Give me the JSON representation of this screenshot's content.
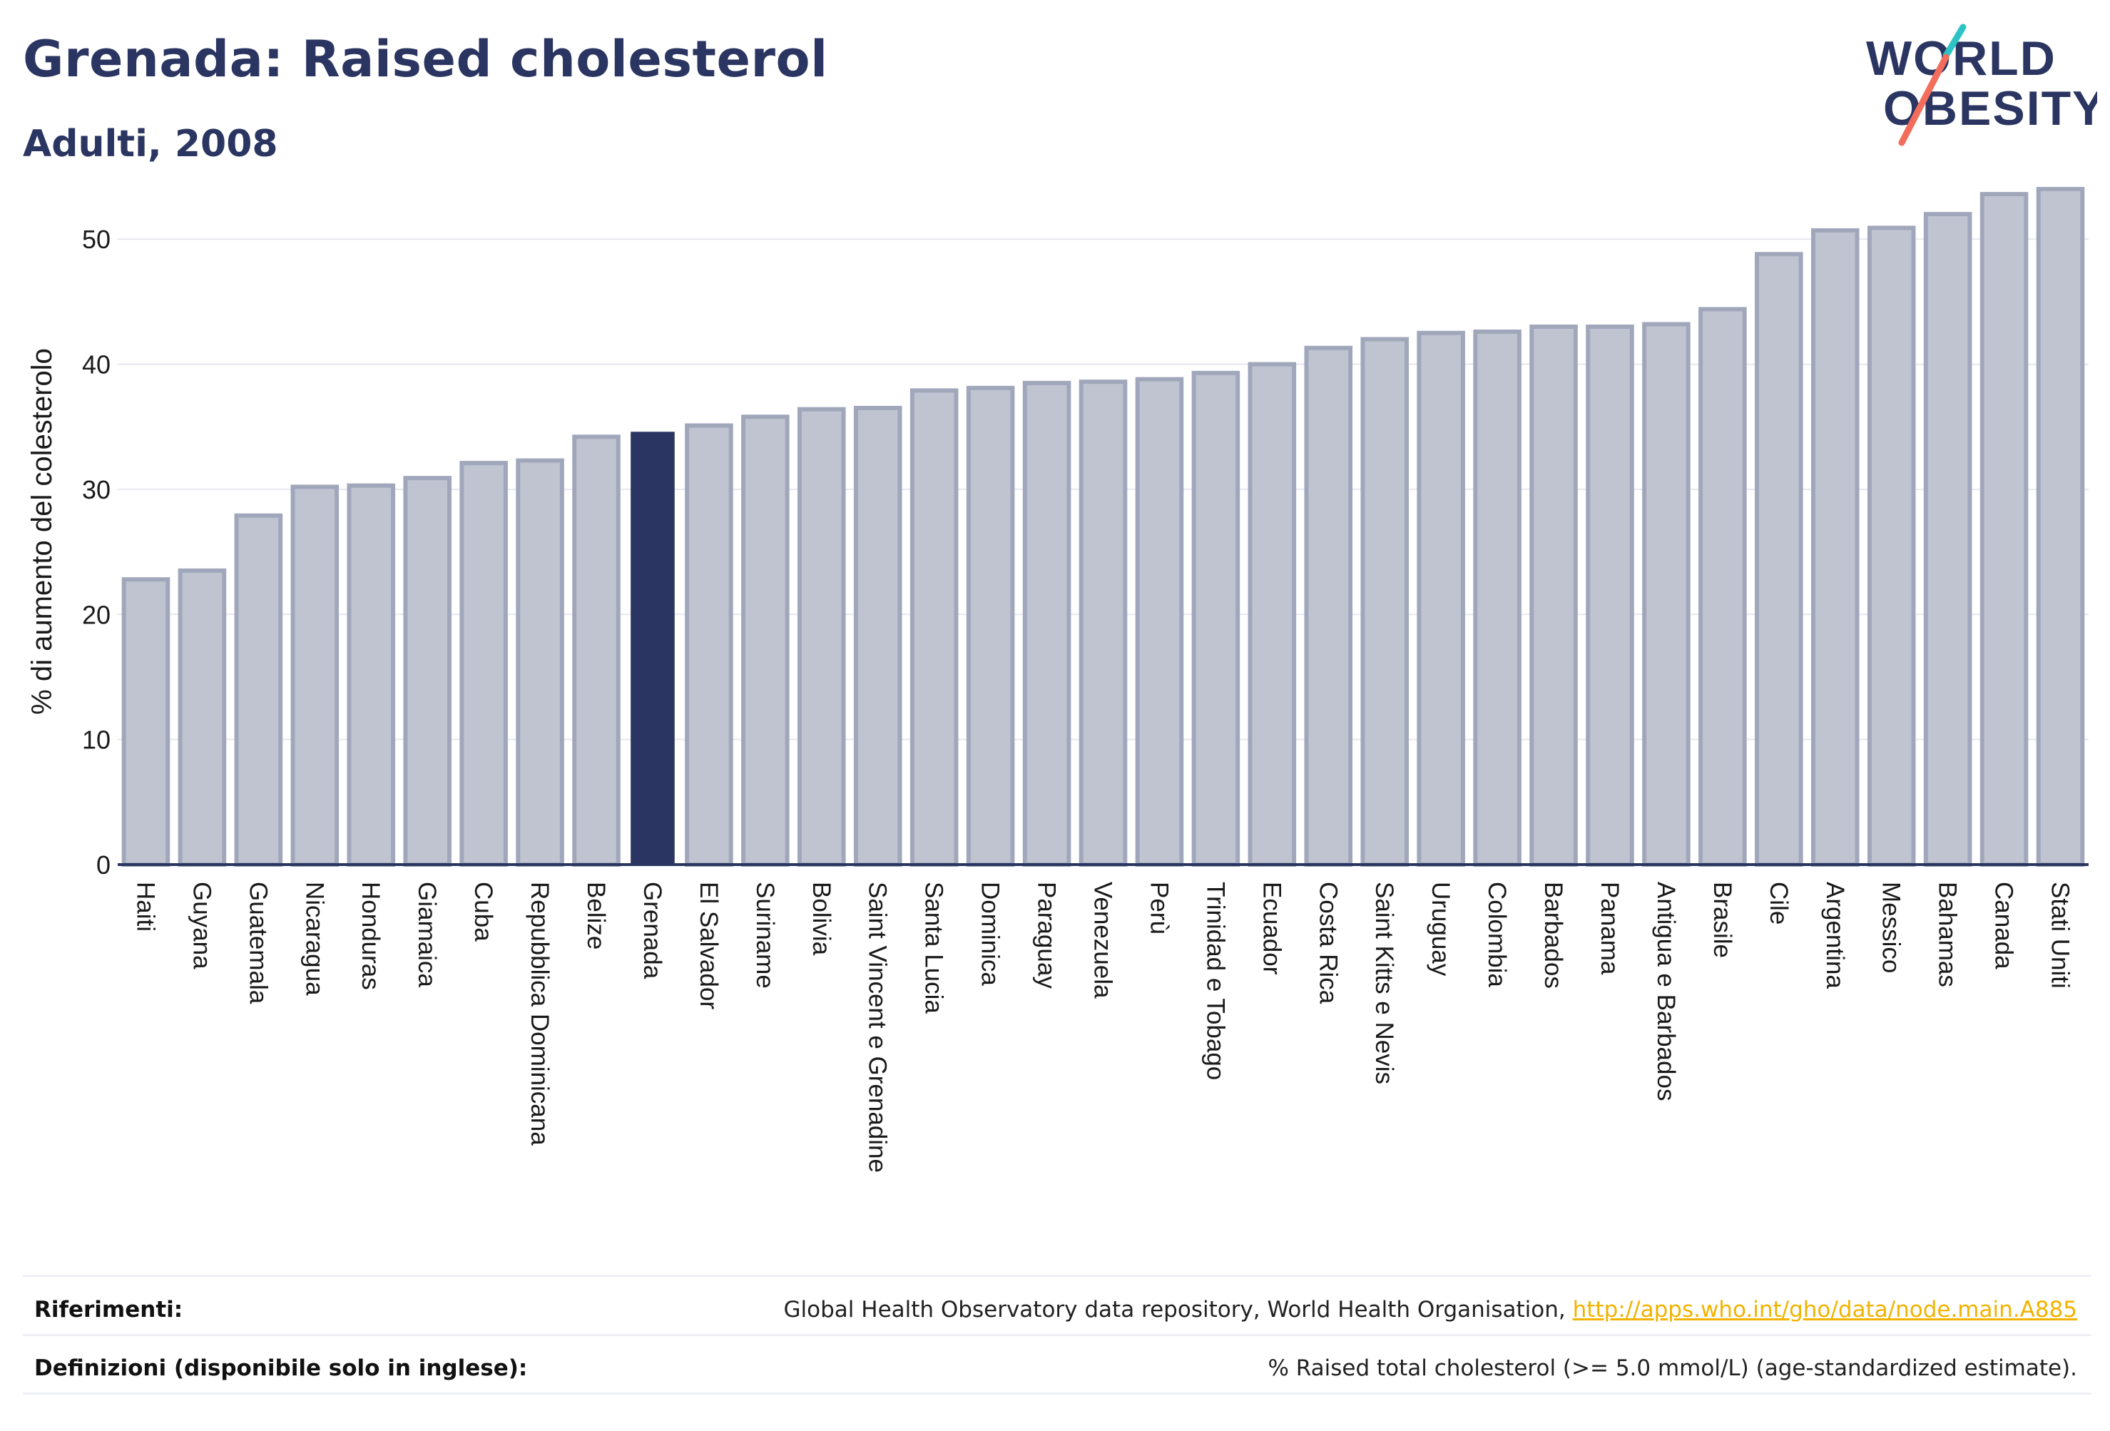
{
  "header": {
    "title": "Grenada: Raised cholesterol",
    "subtitle": "Adulti, 2008"
  },
  "logo": {
    "line1": "WORLD",
    "line2": "OBESITY"
  },
  "colors": {
    "bar_fill": "#c0c4d1",
    "bar_stroke": "#a1a7bb",
    "highlight": "#2b3561",
    "text": "#2b3561",
    "grid": "#e6e8ef",
    "logo_teal": "#2ec4c6",
    "logo_coral": "#f26d5b",
    "link": "#f2b300"
  },
  "chart_data": {
    "type": "bar",
    "title": "Grenada: Raised cholesterol",
    "subtitle": "Adulti, 2008",
    "ylabel": "% di aumento del colesterolo",
    "xlabel": "",
    "ylim": [
      0,
      56
    ],
    "yticks": [
      0,
      10,
      20,
      30,
      40,
      50
    ],
    "grid": true,
    "highlight": "Grenada",
    "categories": [
      "Haiti",
      "Guyana",
      "Guatemala",
      "Nicaragua",
      "Honduras",
      "Giamaica",
      "Cuba",
      "Repubblica Dominicana",
      "Belize",
      "Grenada",
      "El Salvador",
      "Suriname",
      "Bolivia",
      "Saint Vincent e Grenadine",
      "Santa Lucia",
      "Dominica",
      "Paraguay",
      "Venezuela",
      "Perù",
      "Trinidad e Tobago",
      "Ecuador",
      "Costa Rica",
      "Saint Kitts e Nevis",
      "Uruguay",
      "Colombia",
      "Barbados",
      "Panama",
      "Antigua e Barbados",
      "Brasile",
      "Cile",
      "Argentina",
      "Messico",
      "Bahamas",
      "Canada",
      "Stati Uniti"
    ],
    "values": [
      22.8,
      23.5,
      27.9,
      30.2,
      30.3,
      30.9,
      32.1,
      32.3,
      34.2,
      34.6,
      35.1,
      35.8,
      36.4,
      36.5,
      37.9,
      38.1,
      38.5,
      38.6,
      38.8,
      39.3,
      40.0,
      41.3,
      42.0,
      42.5,
      42.6,
      43.0,
      43.0,
      43.2,
      44.4,
      48.8,
      50.7,
      50.9,
      52.0,
      53.6,
      54.0
    ]
  },
  "footer": {
    "references_label": "Riferimenti:",
    "references_text": "Global Health Observatory data repository, World Health Organisation, ",
    "references_link": "http://apps.who.int/gho/data/node.main.A885",
    "definitions_label": "Definizioni (disponibile solo in inglese):",
    "definitions_text": "% Raised total cholesterol (>= 5.0 mmol/L) (age-standardized estimate)."
  }
}
